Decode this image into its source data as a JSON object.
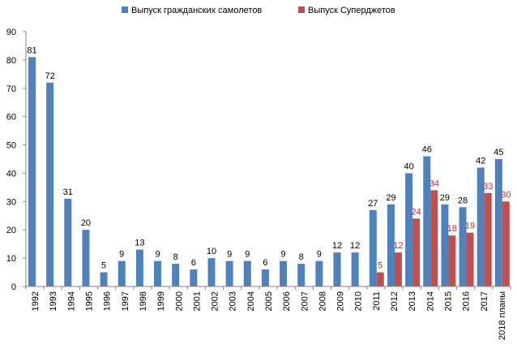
{
  "chart_data": {
    "type": "bar",
    "categories": [
      "1992",
      "1993",
      "1994",
      "1995",
      "1996",
      "1997",
      "1998",
      "1999",
      "2000",
      "2001",
      "2002",
      "2003",
      "2004",
      "2005",
      "2006",
      "2007",
      "2008",
      "2009",
      "2010",
      "2011",
      "2012",
      "2013",
      "2014",
      "2015",
      "2016",
      "2017",
      "2018 планы"
    ],
    "series": [
      {
        "name": "Выпуск гражданских самолетов",
        "color": "#4f81bd",
        "label_color": "#000000",
        "values": [
          81,
          72,
          31,
          20,
          5,
          9,
          13,
          9,
          8,
          6,
          10,
          9,
          9,
          6,
          9,
          8,
          9,
          12,
          12,
          27,
          29,
          40,
          46,
          29,
          28,
          42,
          45
        ]
      },
      {
        "name": "Выпуск Суперджетов",
        "color": "#c0504d",
        "label_color": "#c0282d",
        "values": [
          null,
          null,
          null,
          null,
          null,
          null,
          null,
          null,
          null,
          null,
          null,
          null,
          null,
          null,
          null,
          null,
          null,
          null,
          null,
          5,
          12,
          24,
          34,
          18,
          19,
          33,
          30
        ]
      }
    ],
    "ylim": [
      0,
      90
    ],
    "yticks": [
      0,
      10,
      20,
      30,
      40,
      50,
      60,
      70,
      80,
      90
    ],
    "grid": false,
    "legend_position": "top-center",
    "title": "",
    "xlabel": "",
    "ylabel": ""
  }
}
